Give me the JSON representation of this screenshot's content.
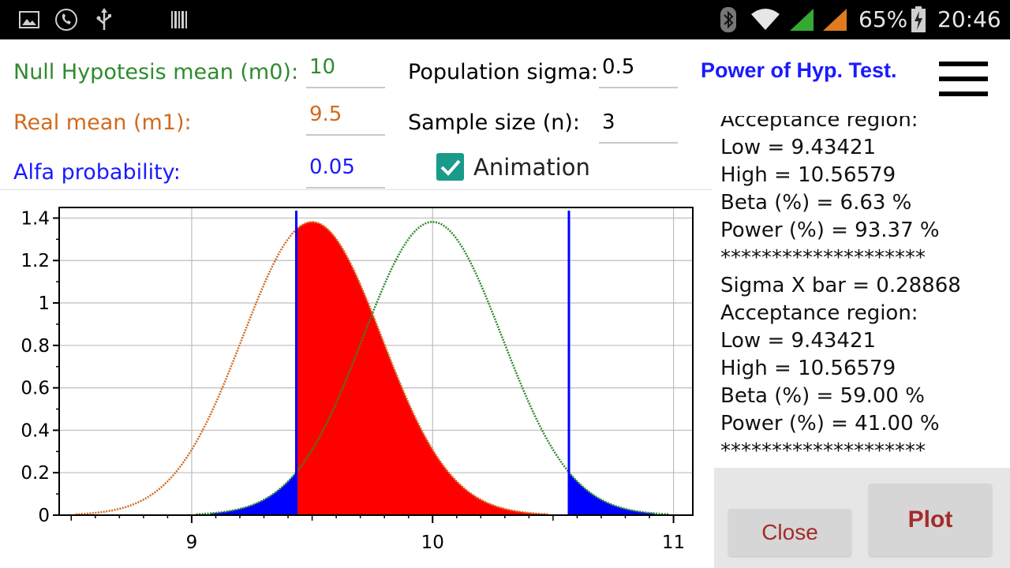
{
  "status_bar": {
    "battery_percent_text": "65%",
    "time": "20:46",
    "icons": [
      "image-icon",
      "phone-icon",
      "usb-icon",
      "barcode-icon",
      "bluetooth-icon",
      "wifi-icon",
      "signal-green-icon",
      "signal-orange-icon",
      "battery-charging-icon"
    ]
  },
  "form": {
    "null_mean_label": "Null Hypotesis mean (m0):",
    "null_mean_value": "10",
    "real_mean_label": "Real mean (m1):",
    "real_mean_value": "9.5",
    "alfa_label": "Alfa probability:",
    "alfa_value": "0.05",
    "sigma_label": "Population sigma:",
    "sigma_value": "0.5",
    "sample_label": "Sample size (n):",
    "sample_value": "3",
    "animation_label": "Animation",
    "animation_checked": true
  },
  "header": {
    "title": "Power of Hyp. Test."
  },
  "results": {
    "lines": [
      "Acceptance region:",
      "Low = 9.43421",
      "High = 10.56579",
      "Beta (%) = 6.63 %",
      "Power (%) = 93.37 %",
      "********************",
      "Sigma X bar = 0.28868",
      "Acceptance region:",
      "Low = 9.43421",
      "High = 10.56579",
      "Beta (%) = 59.00 %",
      "Power (%) = 41.00 %",
      "********************"
    ]
  },
  "buttons": {
    "close_label": "Close",
    "plot_label": "Plot"
  },
  "colors": {
    "null_curve": "#2e8b2e",
    "real_curve": "#d2691e",
    "beta_fill": "#ff0000",
    "alpha_fill": "#0000ff",
    "limit_lines": "#0000ff",
    "title_blue": "#1a1aff",
    "button_text": "#a52a2a"
  },
  "chart_data": {
    "type": "area",
    "series": [
      {
        "distribution": "normal",
        "mean": 10,
        "sd": 0.28868,
        "color": "#2e8b2e",
        "style": "dotted"
      },
      {
        "distribution": "normal",
        "mean": 9.5,
        "sd": 0.28868,
        "color": "#d2691e",
        "style": "dotted"
      }
    ],
    "acceptance_region": {
      "low": 9.43421,
      "high": 10.56579
    },
    "xlim": [
      8.45,
      11.08
    ],
    "ylim": [
      0,
      1.45
    ],
    "x_ticks": [
      9,
      10,
      11
    ],
    "x_tick_labels": [
      "9",
      "10",
      "11"
    ],
    "y_ticks": [
      0,
      0.2,
      0.4,
      0.6,
      0.8,
      1,
      1.2,
      1.4
    ],
    "y_tick_labels": [
      "0",
      "0.2",
      "0.4",
      "0.6",
      "0.8",
      "1",
      "1.2",
      "1.4"
    ],
    "grid": true
  }
}
